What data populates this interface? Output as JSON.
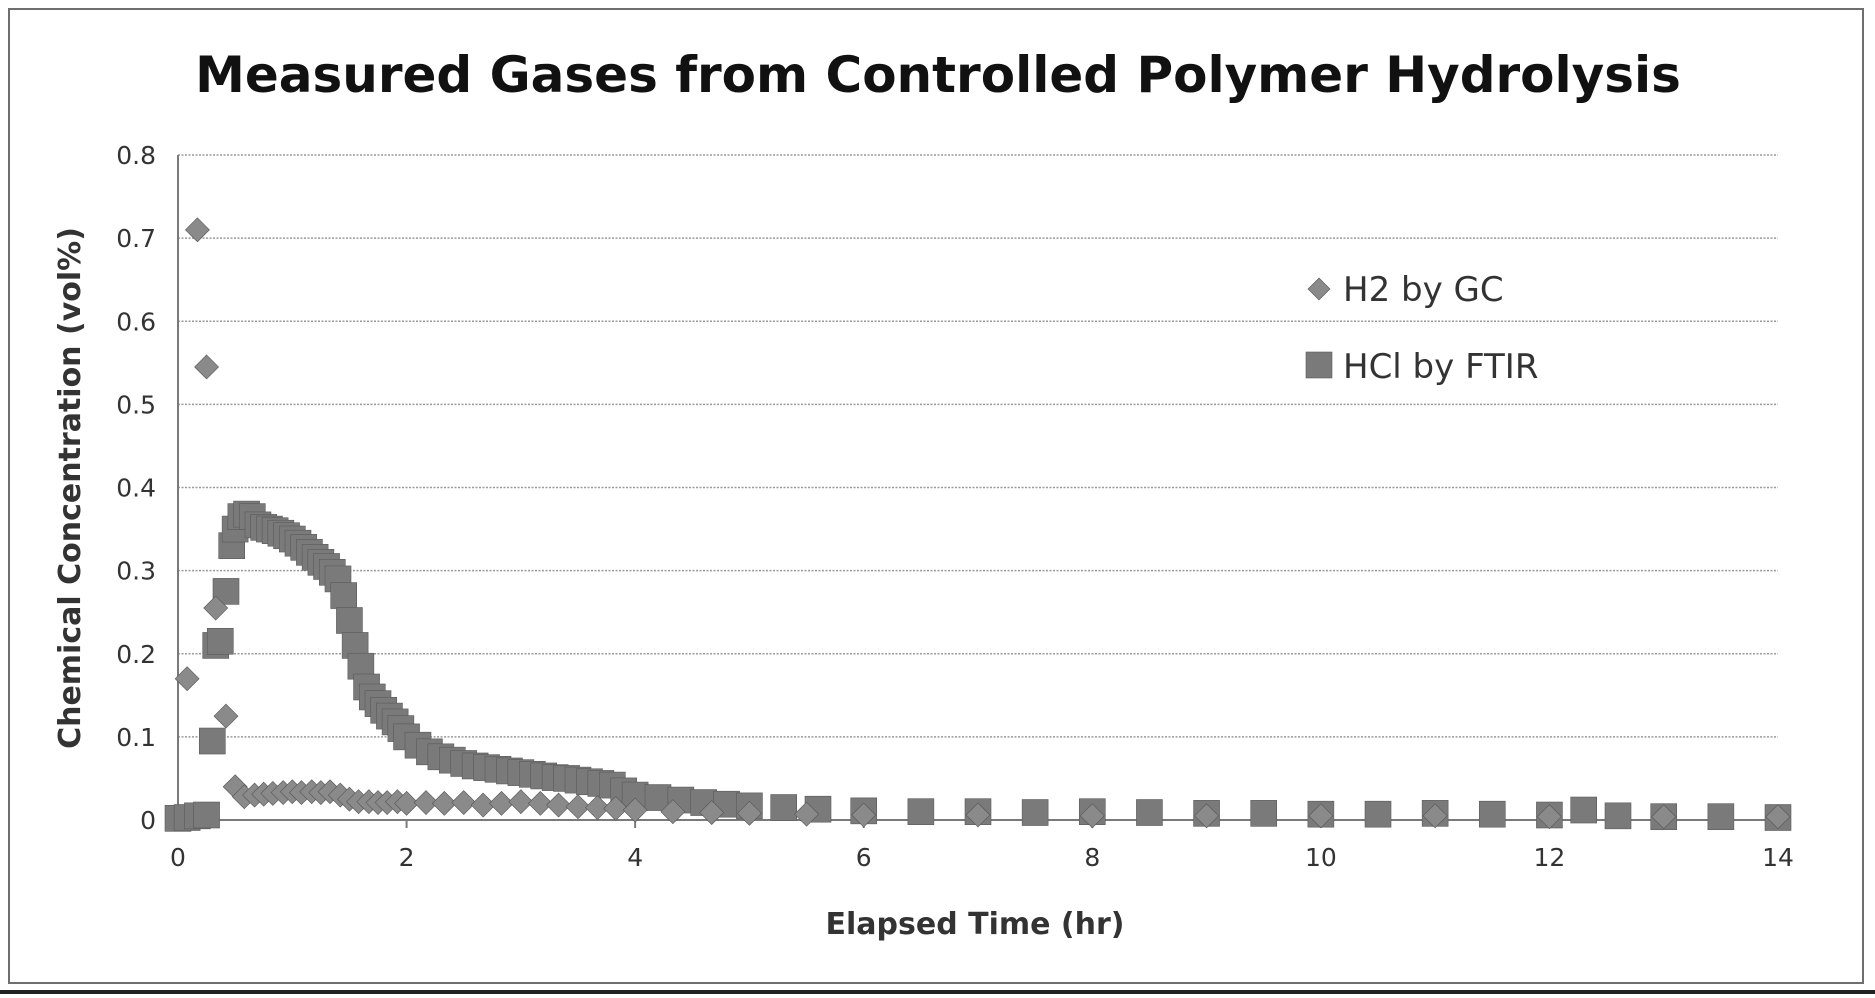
{
  "chart_data": {
    "type": "scatter",
    "title": "Measured Gases from Controlled Polymer Hydrolysis",
    "xlabel": "Elapsed Time (hr)",
    "ylabel": "Chemical Concentration (vol%)",
    "xlim": [
      0,
      14
    ],
    "ylim": [
      0,
      0.8
    ],
    "x_ticks": [
      "0",
      "2",
      "4",
      "6",
      "8",
      "10",
      "12",
      "14"
    ],
    "y_ticks": [
      "0",
      "0.1",
      "0.2",
      "0.3",
      "0.4",
      "0.5",
      "0.6",
      "0.7",
      "0.8"
    ],
    "grid": true,
    "legend_position": "top-right",
    "colors": {
      "h2": "#8a8a8a",
      "hcl": "#7a7a7a",
      "grid": "#9a9a9a",
      "axis": "#7a7a7a"
    },
    "series": [
      {
        "name": "H2 by GC",
        "marker": "diamond",
        "x": [
          0.08,
          0.17,
          0.25,
          0.33,
          0.42,
          0.5,
          0.58,
          0.67,
          0.75,
          0.83,
          0.92,
          1.0,
          1.08,
          1.17,
          1.25,
          1.33,
          1.42,
          1.5,
          1.58,
          1.67,
          1.75,
          1.83,
          1.92,
          2.0,
          2.17,
          2.33,
          2.5,
          2.67,
          2.83,
          3.0,
          3.17,
          3.33,
          3.5,
          3.67,
          3.83,
          4.0,
          4.33,
          4.67,
          5.0,
          5.5,
          6.0,
          7.0,
          8.0,
          9.0,
          10.0,
          11.0,
          12.0,
          13.0,
          14.0
        ],
        "y": [
          0.17,
          0.71,
          0.545,
          0.255,
          0.125,
          0.04,
          0.028,
          0.03,
          0.031,
          0.032,
          0.033,
          0.034,
          0.033,
          0.034,
          0.033,
          0.034,
          0.03,
          0.025,
          0.022,
          0.022,
          0.021,
          0.021,
          0.022,
          0.02,
          0.021,
          0.02,
          0.021,
          0.018,
          0.02,
          0.022,
          0.02,
          0.018,
          0.016,
          0.015,
          0.014,
          0.012,
          0.01,
          0.009,
          0.008,
          0.007,
          0.006,
          0.006,
          0.005,
          0.005,
          0.005,
          0.005,
          0.004,
          0.004,
          0.004
        ]
      },
      {
        "name": "HCl by FTIR",
        "marker": "square",
        "x": [
          0.0,
          0.08,
          0.17,
          0.25,
          0.3,
          0.33,
          0.37,
          0.42,
          0.47,
          0.5,
          0.55,
          0.6,
          0.65,
          0.7,
          0.75,
          0.8,
          0.85,
          0.9,
          0.95,
          1.0,
          1.05,
          1.1,
          1.15,
          1.2,
          1.25,
          1.3,
          1.35,
          1.4,
          1.45,
          1.5,
          1.55,
          1.6,
          1.65,
          1.7,
          1.75,
          1.8,
          1.85,
          1.9,
          1.95,
          2.0,
          2.1,
          2.2,
          2.3,
          2.4,
          2.5,
          2.6,
          2.7,
          2.8,
          2.9,
          3.0,
          3.1,
          3.2,
          3.3,
          3.4,
          3.5,
          3.6,
          3.7,
          3.8,
          3.9,
          4.0,
          4.2,
          4.4,
          4.6,
          4.8,
          5.0,
          5.3,
          5.6,
          6.0,
          6.5,
          7.0,
          7.5,
          8.0,
          8.5,
          9.0,
          9.5,
          10.0,
          10.5,
          11.0,
          11.5,
          12.0,
          12.3,
          12.6,
          13.0,
          13.5,
          14.0
        ],
        "y": [
          0.002,
          0.003,
          0.005,
          0.006,
          0.095,
          0.21,
          0.215,
          0.275,
          0.33,
          0.35,
          0.365,
          0.368,
          0.365,
          0.355,
          0.352,
          0.35,
          0.348,
          0.345,
          0.342,
          0.338,
          0.333,
          0.328,
          0.322,
          0.316,
          0.31,
          0.305,
          0.298,
          0.29,
          0.27,
          0.24,
          0.21,
          0.185,
          0.16,
          0.148,
          0.14,
          0.132,
          0.125,
          0.118,
          0.11,
          0.1,
          0.09,
          0.082,
          0.076,
          0.072,
          0.068,
          0.065,
          0.063,
          0.061,
          0.059,
          0.057,
          0.055,
          0.053,
          0.051,
          0.05,
          0.048,
          0.046,
          0.044,
          0.042,
          0.035,
          0.03,
          0.027,
          0.024,
          0.021,
          0.019,
          0.017,
          0.015,
          0.013,
          0.011,
          0.01,
          0.01,
          0.009,
          0.01,
          0.009,
          0.008,
          0.008,
          0.007,
          0.007,
          0.008,
          0.007,
          0.006,
          0.012,
          0.005,
          0.004,
          0.004,
          0.003
        ]
      }
    ]
  }
}
